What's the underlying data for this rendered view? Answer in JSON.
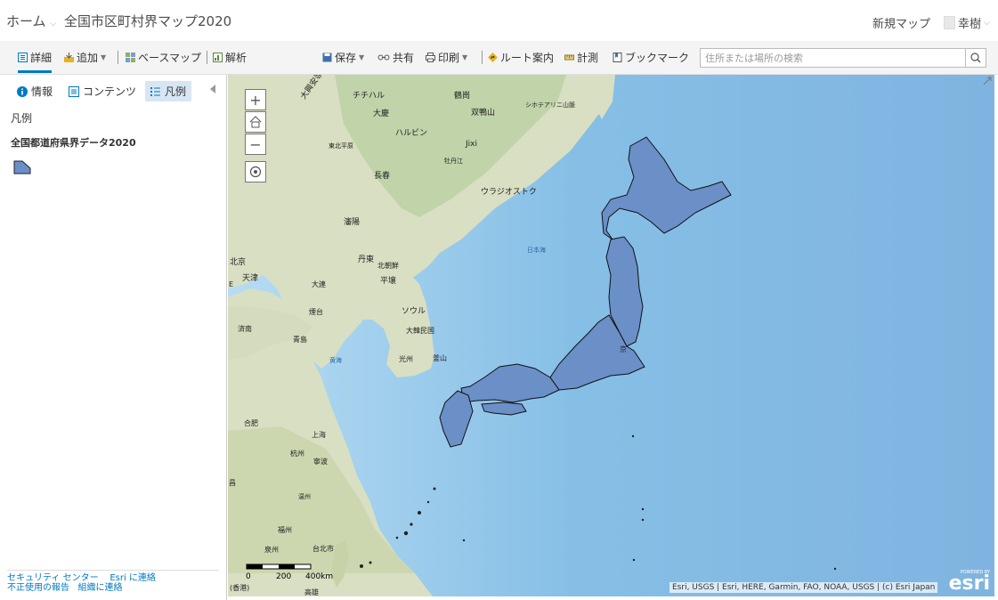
{
  "header": {
    "home": "ホーム",
    "title": "全国市区町村界マップ2020",
    "new_map": "新規マップ",
    "user_name": "幸樹"
  },
  "toolbar": {
    "details": "詳細",
    "add": "追加",
    "basemap": "ベースマップ",
    "analysis": "解析",
    "save": "保存",
    "share": "共有",
    "print": "印刷",
    "directions": "ルート案内",
    "measure": "計測",
    "bookmarks": "ブックマーク",
    "search_placeholder": "住所または場所の検索"
  },
  "left_panel": {
    "tabs": {
      "info": "情報",
      "contents": "コンテンツ",
      "legend": "凡例"
    },
    "legend_heading": "凡例",
    "layer_name": "全国都道府県界データ2020",
    "footer": {
      "security": "セキュリティ センター",
      "contact_esri": "Esri に連絡",
      "report_abuse": "不正使用の報告",
      "contact_org": "組織に連絡"
    }
  },
  "map": {
    "labels": {
      "daikoan": "大興安嶺",
      "qiqihar": "チチハル",
      "hegang": "鶴崗",
      "daqing": "大慶",
      "sikhote": "シホテアリニ山脈",
      "shuangyashan": "双鴨山",
      "harbin": "ハルビン",
      "dongbei": "東北平原",
      "jixi": "Jixi",
      "mudanjiang": "牡丹江",
      "changchun": "長春",
      "vladivostok": "ウラジオストク",
      "shenyang": "瀋陽",
      "sea_of_japan": "日本海",
      "beijing": "北京",
      "dandong": "丹東",
      "north_korea": "北朝鮮",
      "tianjin": "天津",
      "dalian": "大連",
      "pyongyang": "平壌",
      "yantai": "煙台",
      "seoul": "ソウル",
      "jinan": "済南",
      "south_korea": "大韓民国",
      "qingdao": "青島",
      "yellow_sea": "黄海",
      "gwangju": "光州",
      "busan": "釜山",
      "hefei": "合肥",
      "shanghai": "上海",
      "hangzhou": "杭州",
      "ningbo": "寧波",
      "wenzhou": "温州",
      "fuzhou": "福州",
      "quanzhou": "泉州",
      "taipei": "台北市",
      "hongkong": "(香港)",
      "kaohsiung": "高雄",
      "tokyo_frag": "京",
      "frag_e": "E",
      "frag_hu": "昌"
    },
    "scale": {
      "zero": "0",
      "mid": "200",
      "end": "400km"
    },
    "attribution": "Esri, USGS | Esri, HERE, Garmin, FAO, NOAA, USGS | (c) Esri Japan",
    "esri_logo": "esri",
    "esri_powered": "POWERED BY",
    "colors": {
      "land_fill": "#6b8fc7",
      "ocean": "#8ec3e8",
      "accent": "#0079c1"
    }
  }
}
